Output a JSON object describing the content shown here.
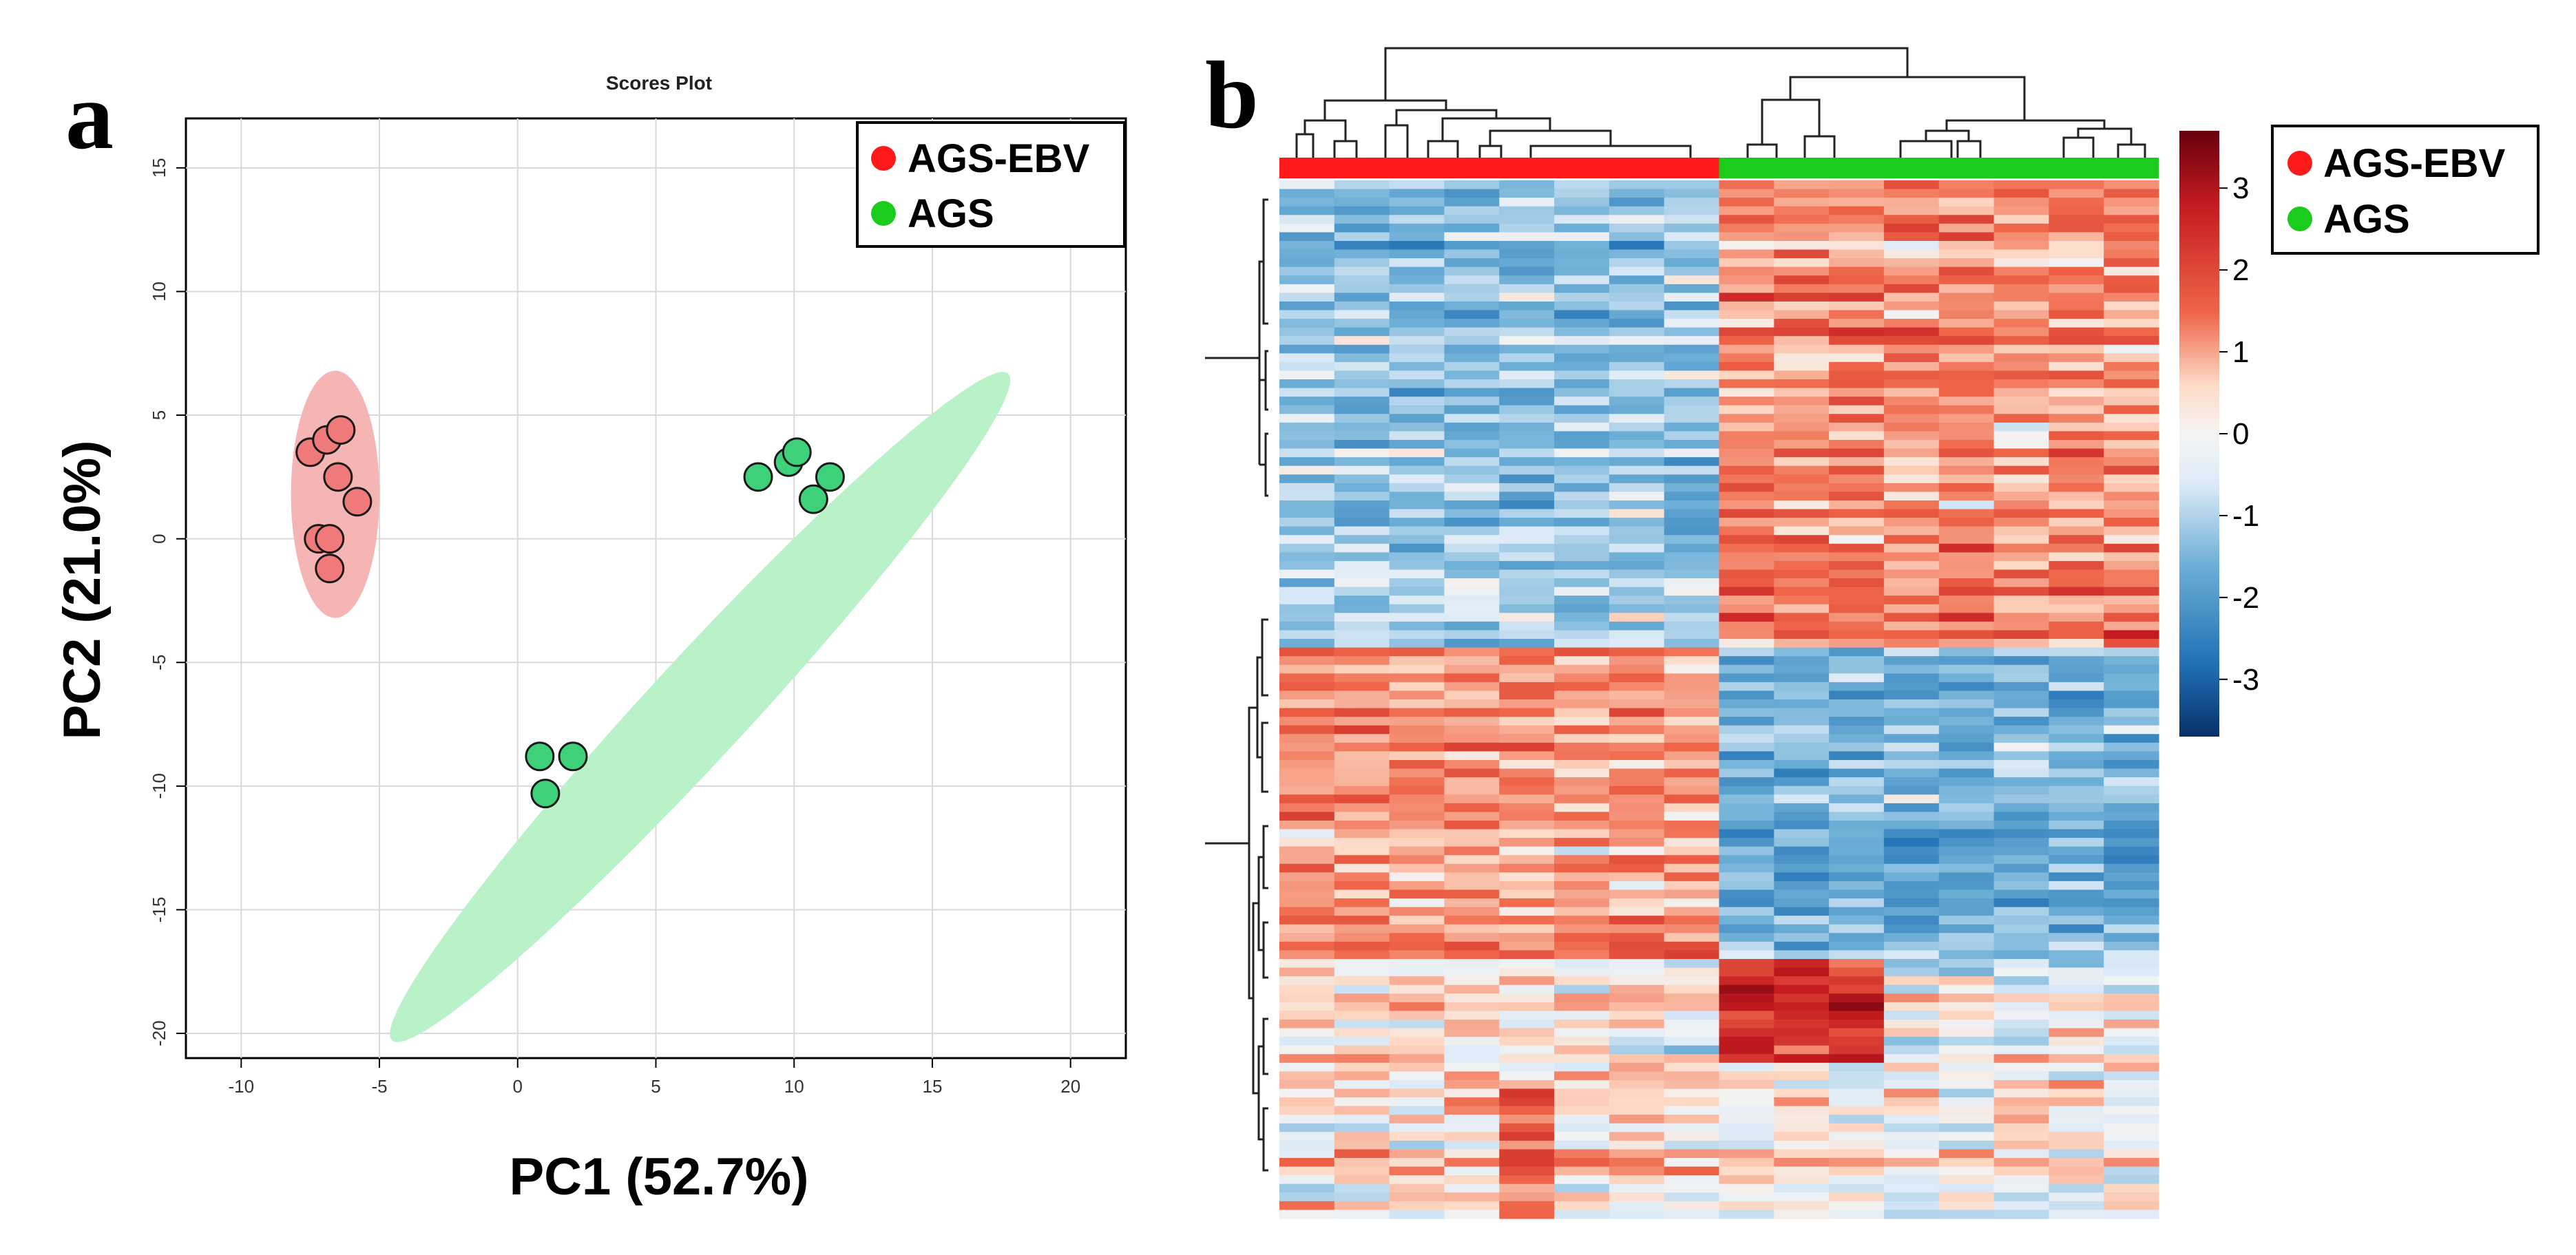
{
  "chart_data": [
    {
      "panel_label": "a",
      "type": "scatter",
      "title": "Scores Plot",
      "xlabel": "PC1 (52.7%)",
      "ylabel": "PC2 (21.0%)",
      "xlim": [
        -12,
        22
      ],
      "ylim": [
        -21,
        17
      ],
      "xticks": [
        -10,
        -5,
        0,
        5,
        10,
        15,
        20
      ],
      "yticks": [
        -20,
        -15,
        -10,
        -5,
        0,
        5,
        10,
        15
      ],
      "grid": true,
      "legend_position": "top-right",
      "series": [
        {
          "name": "AGS-EBV",
          "color": "#ff1a1a",
          "point_color": "#f07a7a",
          "ellipse_color": "#f6b5b5",
          "ellipse": {
            "center": [
              -6.6,
              1.8
            ],
            "half_width": 1.6,
            "half_height": 5.0,
            "angle_deg": 0
          },
          "points": [
            [
              -7.5,
              3.5
            ],
            [
              -6.9,
              4.0
            ],
            [
              -6.4,
              4.4
            ],
            [
              -6.5,
              2.5
            ],
            [
              -5.8,
              1.5
            ],
            [
              -7.2,
              0.0
            ],
            [
              -6.8,
              0.0
            ],
            [
              -6.8,
              -1.2
            ]
          ]
        },
        {
          "name": "AGS",
          "color": "#1ccc1c",
          "point_color": "#3fd07a",
          "ellipse_color": "#b9f2c9",
          "ellipse": {
            "center": [
              6.6,
              -6.8
            ],
            "half_width": 17.5,
            "half_height": 1.9,
            "angle_deg": 50.5
          },
          "points": [
            [
              8.7,
              2.5
            ],
            [
              9.8,
              3.1
            ],
            [
              10.1,
              3.5
            ],
            [
              11.3,
              2.5
            ],
            [
              10.7,
              1.6
            ],
            [
              0.8,
              -8.8
            ],
            [
              2.0,
              -8.8
            ],
            [
              1.0,
              -10.3
            ]
          ]
        }
      ]
    },
    {
      "panel_label": "b",
      "type": "heatmap",
      "title": "",
      "n_columns": 16,
      "n_rows": 120,
      "column_groups": [
        {
          "name": "AGS-EBV",
          "color": "#ff1a1a",
          "columns": 8
        },
        {
          "name": "AGS",
          "color": "#1ccc1c",
          "columns": 8
        }
      ],
      "row_blocks": [
        {
          "rows": 54,
          "ebv_mean": -0.9,
          "ags_mean": 1.0
        },
        {
          "rows": 36,
          "ebv_mean": 1.0,
          "ags_mean": -1.1
        },
        {
          "rows": 30,
          "ebv_mean": 0.2,
          "ags_mean": 0.0
        }
      ],
      "color_scale": {
        "range": [
          -3.7,
          3.7
        ],
        "ticks": [
          3,
          2,
          1,
          0,
          -1,
          -2,
          -3
        ],
        "tick_labels": [
          "3",
          "2",
          "1",
          "0",
          "-1",
          "-2",
          "-3"
        ],
        "colors": [
          "#08306b",
          "#2171b5",
          "#6baed6",
          "#deebf7",
          "#fddbc7",
          "#ef6548",
          "#c41a1f",
          "#67000d"
        ]
      },
      "legend_position": "top-right",
      "legend": [
        {
          "name": "AGS-EBV",
          "color": "#ff1a1a"
        },
        {
          "name": "AGS",
          "color": "#1ccc1c"
        }
      ]
    }
  ]
}
